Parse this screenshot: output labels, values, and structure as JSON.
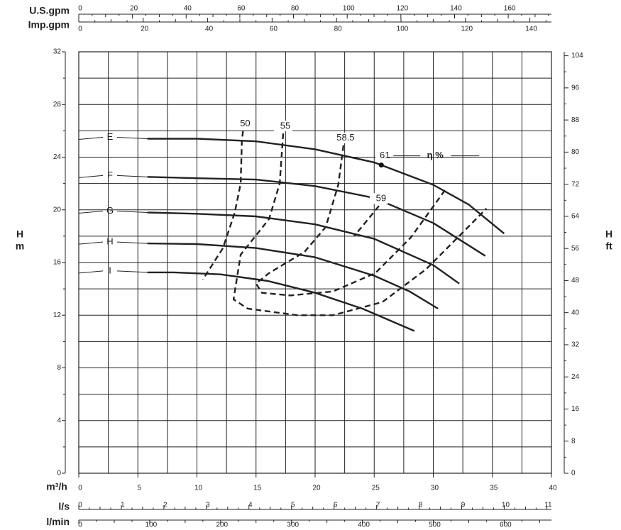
{
  "chart_data": {
    "type": "line",
    "xlabel": "m³/h",
    "xlim": [
      0,
      40
    ],
    "xticks": [
      0,
      5,
      10,
      15,
      20,
      25,
      30,
      35,
      40
    ],
    "ylabel": "H",
    "yunit": "m",
    "ylim": [
      0,
      32
    ],
    "yticks": [
      0,
      4,
      8,
      12,
      16,
      20,
      24,
      28,
      32
    ],
    "y2label": "H",
    "y2unit": "ft",
    "y2lim": [
      0,
      104.99
    ],
    "y2ticks": [
      0,
      8,
      16,
      24,
      32,
      40,
      48,
      56,
      64,
      72,
      80,
      88,
      96,
      104
    ],
    "grid": true,
    "extra_x_axes": [
      {
        "label": "U.S.gpm",
        "lim": [
          0,
          176.1
        ],
        "ticks": [
          0,
          20,
          40,
          60,
          80,
          100,
          120,
          140,
          160
        ]
      },
      {
        "label": "Imp.gpm",
        "lim": [
          0,
          146.7
        ],
        "ticks": [
          0,
          20,
          40,
          60,
          80,
          100,
          120,
          140
        ]
      },
      {
        "label": "l/s",
        "lim": [
          0,
          11.11
        ],
        "ticks": [
          0,
          1,
          2,
          3,
          4,
          5,
          6,
          7,
          8,
          9,
          10,
          11
        ]
      },
      {
        "label": "l/min",
        "lim": [
          0,
          666.7
        ],
        "ticks": [
          0,
          100,
          200,
          300,
          400,
          500,
          600
        ]
      }
    ],
    "series": [
      {
        "name": "E",
        "color": "#222222",
        "dashed": false,
        "x": [
          5.8,
          10,
          15,
          20,
          25,
          30,
          33,
          36
        ],
        "values": [
          25.4,
          25.4,
          25.2,
          24.6,
          23.6,
          21.9,
          20.4,
          18.2
        ]
      },
      {
        "name": "F",
        "color": "#222222",
        "dashed": false,
        "x": [
          5.8,
          10,
          15,
          20,
          25,
          30,
          34.4
        ],
        "values": [
          22.5,
          22.4,
          22.3,
          21.8,
          20.9,
          19.0,
          16.5
        ]
      },
      {
        "name": "G",
        "color": "#222222",
        "dashed": false,
        "x": [
          5.8,
          10,
          15,
          20,
          25,
          30,
          32.2
        ],
        "values": [
          19.8,
          19.7,
          19.5,
          18.9,
          17.8,
          15.8,
          14.4
        ]
      },
      {
        "name": "H",
        "color": "#222222",
        "dashed": false,
        "x": [
          5.8,
          10,
          15,
          20,
          25,
          28,
          30.4
        ],
        "values": [
          17.45,
          17.4,
          17.1,
          16.4,
          15.0,
          13.8,
          12.5
        ]
      },
      {
        "name": "I",
        "color": "#222222",
        "dashed": false,
        "x": [
          5.8,
          8,
          12,
          16,
          20,
          24,
          28.4
        ],
        "values": [
          15.25,
          15.25,
          15.1,
          14.6,
          13.7,
          12.5,
          10.8
        ]
      },
      {
        "name": "50",
        "color": "#222222",
        "dashed": true,
        "x": [
          13.9,
          13.8,
          13.7,
          13.2,
          12.2,
          10.5
        ],
        "values": [
          26.0,
          25.2,
          22.0,
          19.8,
          17.1,
          14.7
        ]
      },
      {
        "name": "55",
        "color": "#222222",
        "dashed": true,
        "x": [
          17.3,
          17.0,
          16.1,
          13.7,
          13.1,
          14.3,
          18.5,
          21.5,
          25.7,
          29.4,
          32.4,
          34.5
        ],
        "values": [
          25.8,
          22.0,
          19.3,
          16.6,
          13.2,
          12.5,
          12.0,
          12.0,
          13.0,
          15.5,
          18.2,
          20.1
        ]
      },
      {
        "name": "58.5",
        "color": "#222222",
        "dashed": true,
        "x": [
          22.4,
          21.96,
          20.9,
          19.1,
          16.1,
          15.0,
          15.5,
          17.9,
          21.5,
          25.1,
          28.1,
          31.0
        ],
        "values": [
          24.9,
          21.9,
          18.7,
          16.8,
          15.2,
          14.4,
          13.7,
          13.5,
          13.8,
          15.2,
          17.9,
          21.5
        ]
      },
      {
        "name": "59",
        "color": "#222222",
        "dashed": true,
        "x": [
          25.4,
          24.5,
          23.3
        ],
        "values": [
          20.3,
          19.3,
          18.0
        ]
      }
    ],
    "points": [
      {
        "label": "61",
        "x": 25.6,
        "y": 23.4
      }
    ],
    "efficiency_label": "η %"
  }
}
